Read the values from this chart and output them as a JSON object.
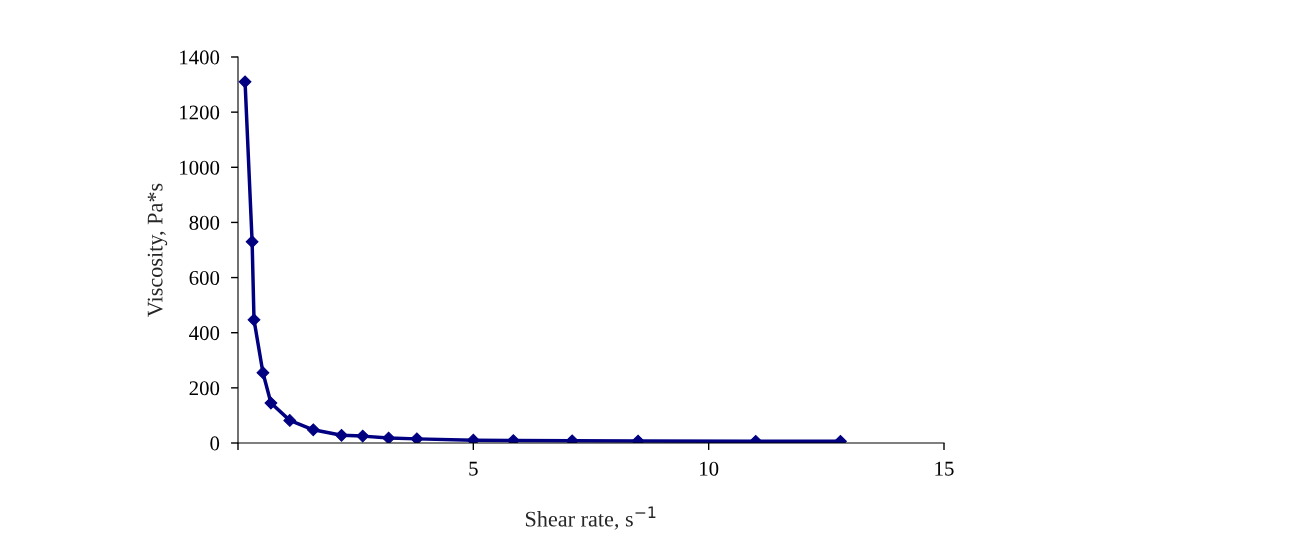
{
  "chart_data": {
    "type": "line",
    "xlabel": "Shear rate, s$^{−1}$",
    "ylabel": "Viscosity, Pa*s",
    "x": [
      0.15,
      0.3,
      0.34,
      0.53,
      0.7,
      1.1,
      1.6,
      2.2,
      2.65,
      3.2,
      3.8,
      5.0,
      5.85,
      7.1,
      8.5,
      11.0,
      12.8
    ],
    "series": [
      {
        "color": "#000080",
        "values": [
          1310,
          730,
          447,
          255,
          145,
          82,
          48,
          28,
          25,
          18,
          15,
          10,
          9,
          8,
          7,
          6,
          6
        ]
      }
    ],
    "xlim": [
      0,
      15
    ],
    "xticks": [
      {
        "value": 0,
        "label": null
      },
      5,
      10,
      15
    ],
    "ylim": [
      0,
      1400
    ],
    "yticks": [
      0,
      200,
      400,
      600,
      800,
      1000,
      1200,
      1400
    ],
    "marker": "diamond",
    "line_style": "solid",
    "grid": false,
    "legend": false
  }
}
